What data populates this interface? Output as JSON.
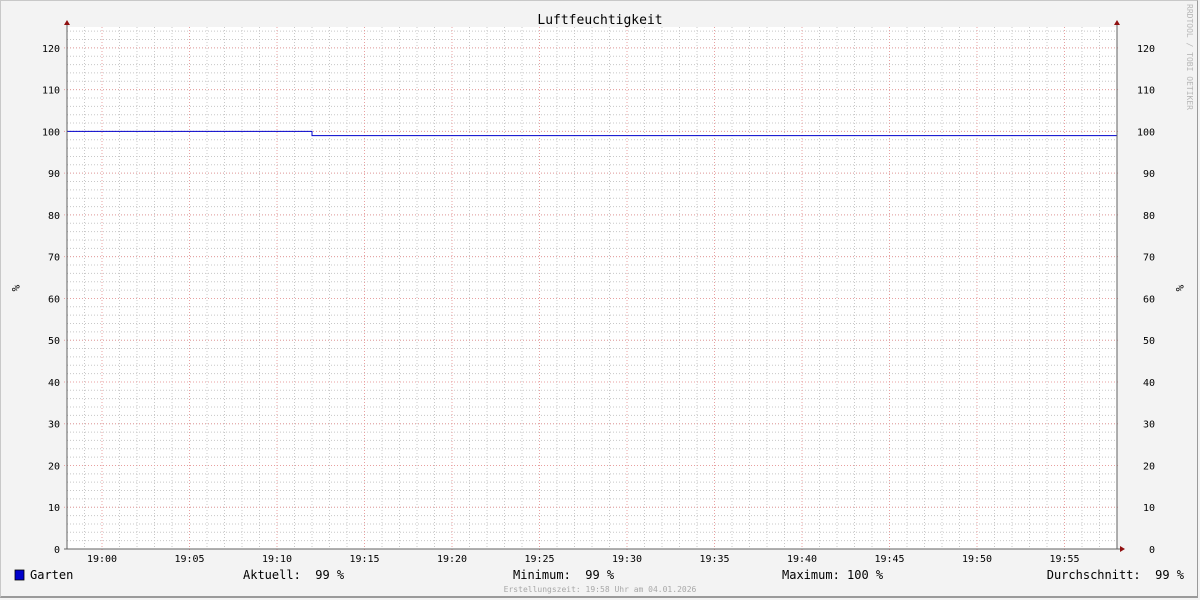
{
  "chart_data": {
    "type": "line",
    "title": "Luftfeuchtigkeit",
    "ylabel": "%",
    "ylabel_right": "%",
    "watermark": "RRDTOOL / TOBI OETIKER",
    "xlim": [
      "18:58",
      "19:58"
    ],
    "ylim": [
      0,
      125
    ],
    "x_ticks": [
      "19:00",
      "19:05",
      "19:10",
      "19:15",
      "19:20",
      "19:25",
      "19:30",
      "19:35",
      "19:40",
      "19:45",
      "19:50",
      "19:55"
    ],
    "y_ticks": [
      0,
      10,
      20,
      30,
      40,
      50,
      60,
      70,
      80,
      90,
      100,
      110,
      120
    ],
    "grid": true,
    "series": [
      {
        "name": "Garten",
        "color": "#0000cc",
        "points": [
          [
            "18:58",
            100
          ],
          [
            "19:12",
            100
          ],
          [
            "19:12",
            99
          ],
          [
            "19:58",
            99
          ]
        ]
      }
    ],
    "legend": {
      "name": "Garten",
      "current": "Aktuell:  99 %",
      "minimum": "Minimum:  99 %",
      "maximum": "Maximum: 100 %",
      "average": "Durchschnitt:  99 %"
    },
    "footer": "Erstellungszeit: 19:58 Uhr am 04.01.2026"
  },
  "colors": {
    "major_grid": "#e8a0a0",
    "minor_grid": "#c8c8c8",
    "axis": "#606060",
    "arrow": "#901010"
  }
}
